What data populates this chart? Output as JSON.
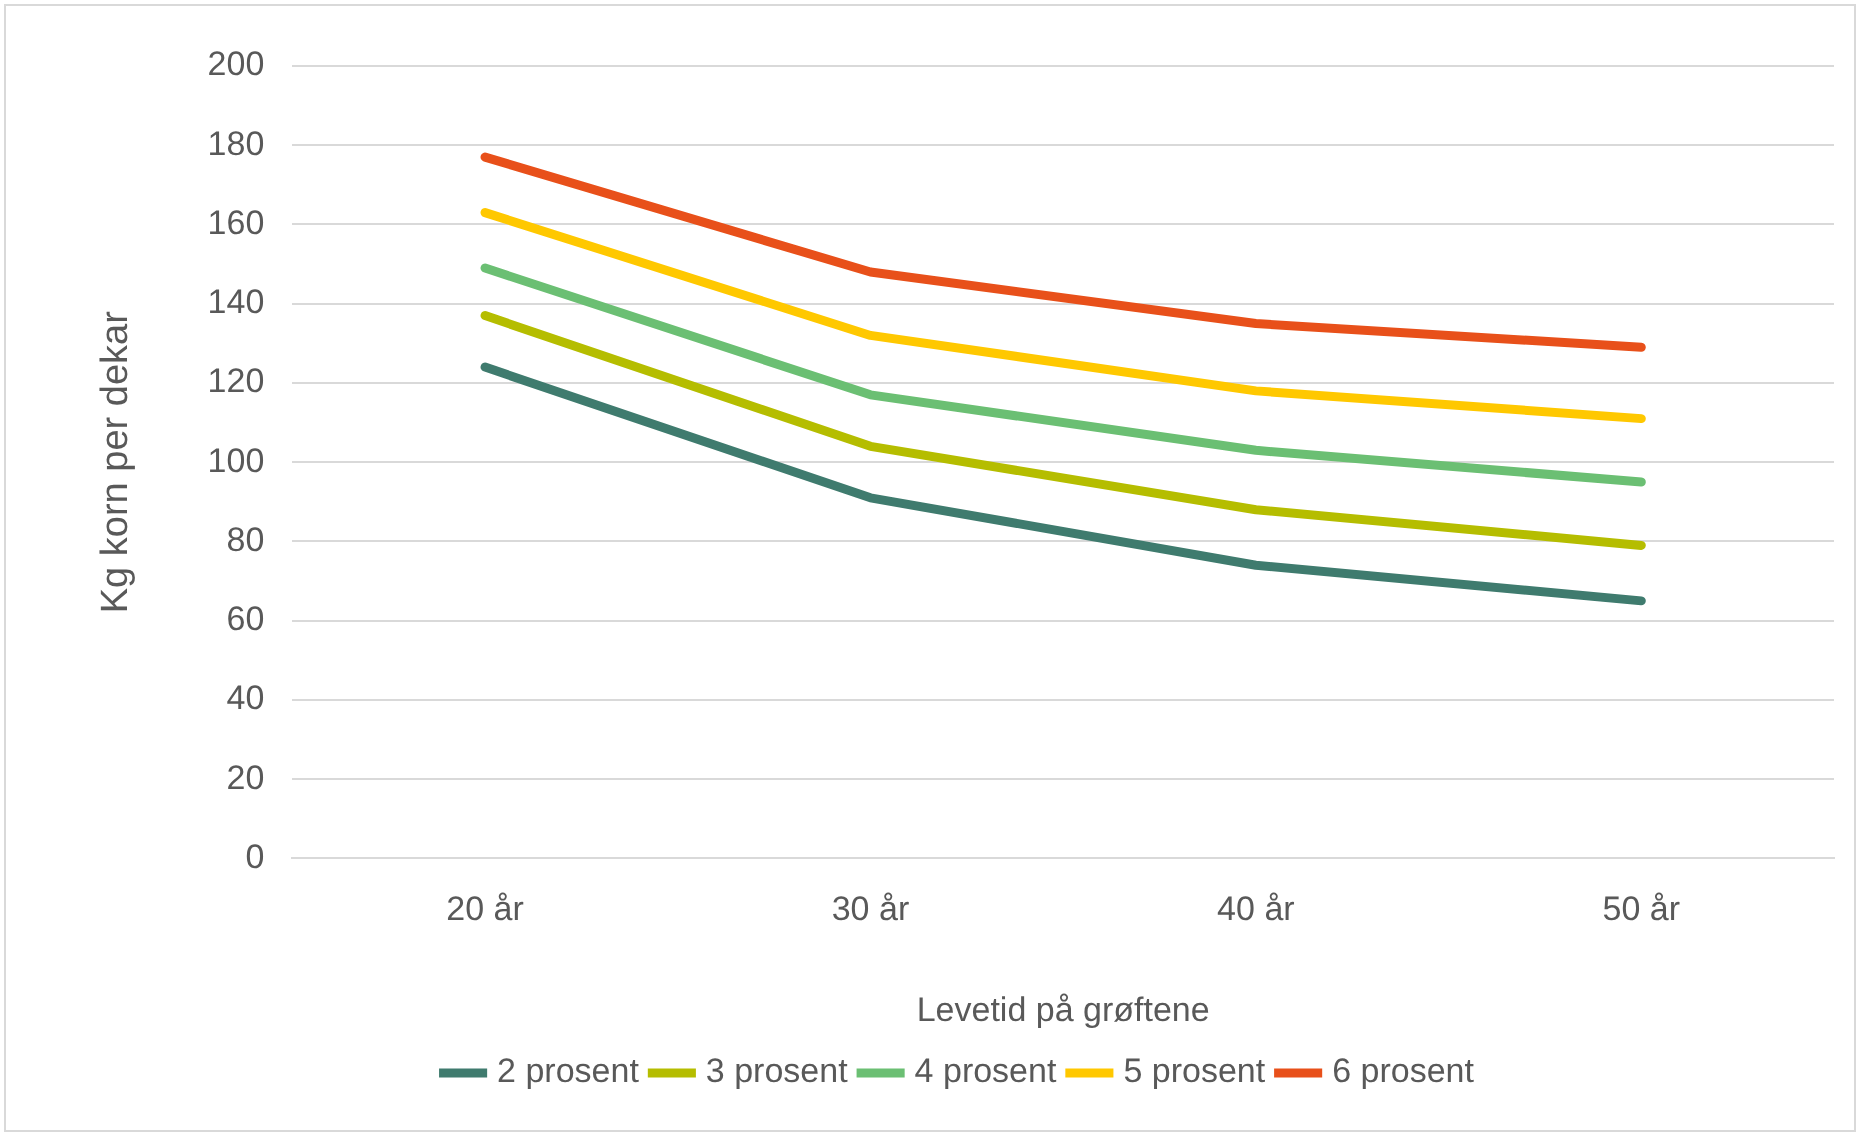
{
  "chart_data": {
    "type": "line",
    "xlabel": "Levetid på grøftene",
    "ylabel": "Kg korn per dekar",
    "categories": [
      "20 år",
      "30 år",
      "40 år",
      "50 år"
    ],
    "series": [
      {
        "name": "2 prosent",
        "color": "#3f7b6e",
        "values": [
          124,
          91,
          74,
          65
        ]
      },
      {
        "name": "3 prosent",
        "color": "#b5bd00",
        "values": [
          137,
          104,
          88,
          79
        ]
      },
      {
        "name": "4 prosent",
        "color": "#6bbf73",
        "values": [
          149,
          117,
          103,
          95
        ]
      },
      {
        "name": "5 prosent",
        "color": "#ffc800",
        "values": [
          163,
          132,
          118,
          111
        ]
      },
      {
        "name": "6 prosent",
        "color": "#e8501a",
        "values": [
          177,
          148,
          135,
          129
        ]
      }
    ],
    "ylim": [
      0,
      200
    ],
    "yticks": [
      0,
      20,
      40,
      60,
      80,
      100,
      120,
      140,
      160,
      180,
      200
    ],
    "grid": "y",
    "legend": "bottom",
    "marker": "none",
    "line_style": "solid"
  }
}
